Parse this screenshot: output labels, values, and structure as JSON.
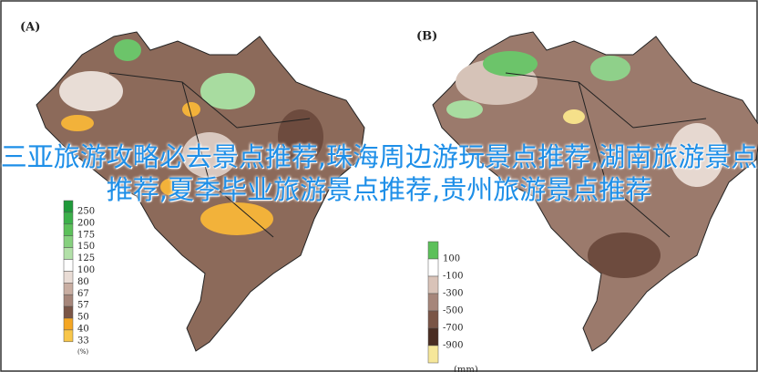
{
  "panel_a": {
    "label": "(A)",
    "legend": [
      "250",
      "200",
      "175",
      "150",
      "125",
      "100",
      "80",
      "67",
      "57",
      "50",
      "40",
      "33"
    ],
    "unit": "(%)"
  },
  "panel_b": {
    "label": "(B)",
    "legend": [
      "100",
      "-100",
      "-300",
      "-500",
      "-700",
      "-900"
    ],
    "unit": "(mm)"
  },
  "overlay_text": "三亚旅游攻略必去景点推荐,珠海周边游玩景点推荐,湖南旅游景点推荐,夏季毕业旅游景点推荐,贵州旅游景点推荐"
}
